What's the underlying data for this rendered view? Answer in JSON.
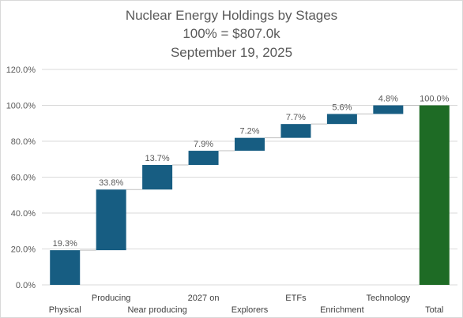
{
  "chart_data": {
    "type": "bar",
    "subtype": "waterfall",
    "title_lines": [
      "Nuclear Energy Holdings by Stages",
      "100% =  $807.0k",
      "September 19, 2025"
    ],
    "categories": [
      "Physical",
      "Producing",
      "Near producing",
      "2027 on",
      "Explorers",
      "ETFs",
      "Enrichment",
      "Technology",
      "Total"
    ],
    "values": [
      19.3,
      33.8,
      13.7,
      7.9,
      7.2,
      7.7,
      5.6,
      4.8,
      100.0
    ],
    "data_labels": [
      "19.3%",
      "33.8%",
      "13.7%",
      "7.9%",
      "7.2%",
      "7.7%",
      "5.6%",
      "4.8%",
      "100.0%"
    ],
    "y_ticks": [
      "0.0%",
      "20.0%",
      "40.0%",
      "60.0%",
      "80.0%",
      "100.0%",
      "120.0%"
    ],
    "y_tick_values": [
      0,
      20,
      40,
      60,
      80,
      100,
      120
    ],
    "ylim": [
      0,
      120
    ],
    "grid": "horizontal",
    "legend": "none",
    "colors": {
      "increase": "#175d82",
      "total": "#1e6b25",
      "grid": "#d9d9d9",
      "text": "#595959",
      "connector": "#bfbfbf"
    }
  }
}
